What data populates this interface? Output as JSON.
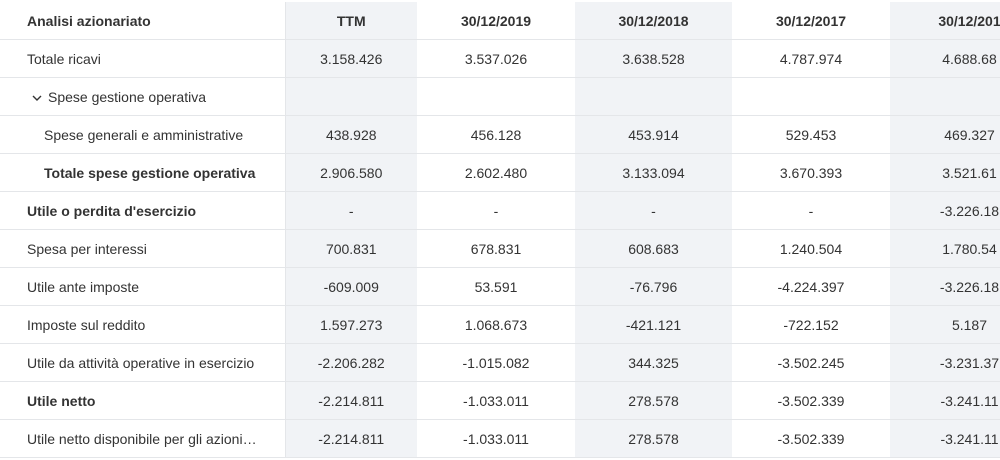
{
  "table": {
    "header": [
      "Analisi azionariato",
      "TTM",
      "30/12/2019",
      "30/12/2018",
      "30/12/2017",
      "30/12/201"
    ],
    "rows": [
      {
        "label": "Totale ricavi",
        "values": [
          "3.158.426",
          "3.537.026",
          "3.638.528",
          "4.787.974",
          "4.688.68"
        ]
      },
      {
        "label": "Spese gestione operativa"
      },
      {
        "label": "Spese generali e amministrative",
        "values": [
          "438.928",
          "456.128",
          "453.914",
          "529.453",
          "469.327"
        ]
      },
      {
        "label": "Totale spese gestione operativa",
        "values": [
          "2.906.580",
          "2.602.480",
          "3.133.094",
          "3.670.393",
          "3.521.61"
        ]
      },
      {
        "label": "Utile o perdita d'esercizio",
        "values": [
          "-",
          "-",
          "-",
          "-",
          "-3.226.18"
        ]
      },
      {
        "label": "Spesa per interessi",
        "values": [
          "700.831",
          "678.831",
          "608.683",
          "1.240.504",
          "1.780.54"
        ]
      },
      {
        "label": "Utile ante imposte",
        "values": [
          "-609.009",
          "53.591",
          "-76.796",
          "-4.224.397",
          "-3.226.18"
        ]
      },
      {
        "label": "Imposte sul reddito",
        "values": [
          "1.597.273",
          "1.068.673",
          "-421.121",
          "-722.152",
          "5.187"
        ]
      },
      {
        "label": "Utile da attività operative in esercizio",
        "values": [
          "-2.206.282",
          "-1.015.082",
          "344.325",
          "-3.502.245",
          "-3.231.37"
        ]
      },
      {
        "label": "Utile netto",
        "values": [
          "-2.214.811",
          "-1.033.011",
          "278.578",
          "-3.502.339",
          "-3.241.11"
        ]
      },
      {
        "label": "Utile netto disponibile per gli azioni…",
        "values": [
          "-2.214.811",
          "-1.033.011",
          "278.578",
          "-3.502.339",
          "-3.241.11"
        ]
      }
    ]
  }
}
